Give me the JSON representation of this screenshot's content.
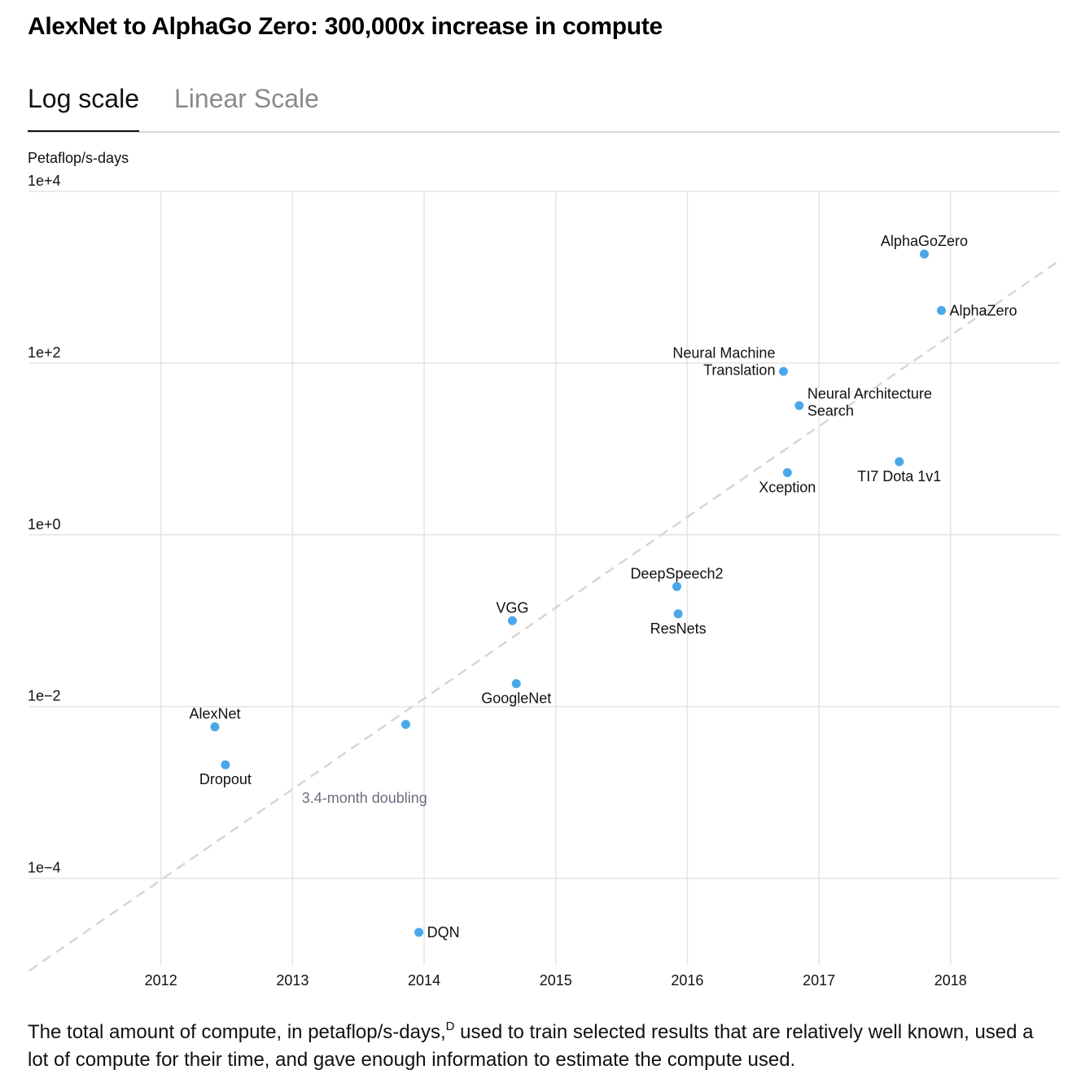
{
  "title": "AlexNet to AlphaGo Zero: 300,000x increase in compute",
  "tabs": [
    {
      "label": "Log scale",
      "active": true
    },
    {
      "label": "Linear Scale",
      "active": false
    }
  ],
  "caption": {
    "text_before": "The total amount of compute, in petaflop/s-days,",
    "footnote": "D",
    "text_after": " used to train selected results that are relatively well known, used a lot of compute for their time, and gave enough information to estimate the compute used."
  },
  "chart_data": {
    "type": "scatter",
    "ylabel": "Petaflop/s-days",
    "y_scale": "log",
    "ylim": [
      9.8e-06,
      10000
    ],
    "xlim": [
      2011.0,
      2018.83
    ],
    "y_ticks": [
      {
        "value": 10000,
        "label": "1e+4"
      },
      {
        "value": 100,
        "label": "1e+2"
      },
      {
        "value": 1,
        "label": "1e+0"
      },
      {
        "value": 0.01,
        "label": "1e−2"
      },
      {
        "value": 0.0001,
        "label": "1e−4"
      }
    ],
    "x_ticks": [
      {
        "value": 2012,
        "label": "2012"
      },
      {
        "value": 2013,
        "label": "2013"
      },
      {
        "value": 2014,
        "label": "2014"
      },
      {
        "value": 2015,
        "label": "2015"
      },
      {
        "value": 2016,
        "label": "2016"
      },
      {
        "value": 2017,
        "label": "2017"
      },
      {
        "value": 2018,
        "label": "2018"
      }
    ],
    "grid": true,
    "point_color": "#4aa8e8",
    "trend_color": "#d6d6d6",
    "trend": {
      "label": "3.4-month doubling",
      "from": {
        "x": 2011.0,
        "y": 8.4e-06
      },
      "to": {
        "x": 2018.83,
        "y": 1580
      }
    },
    "points": [
      {
        "name": "AlexNet",
        "x": 2012.41,
        "y": 0.0058,
        "label": [
          "AlexNet"
        ],
        "label_pos": "above"
      },
      {
        "name": "Dropout",
        "x": 2012.49,
        "y": 0.0021,
        "label": [
          "Dropout"
        ],
        "label_pos": "below"
      },
      {
        "name": "",
        "x": 2013.86,
        "y": 0.0062,
        "label": [],
        "label_pos": "none"
      },
      {
        "name": "DQN",
        "x": 2013.96,
        "y": 2.35e-05,
        "label": [
          "DQN"
        ],
        "label_pos": "right"
      },
      {
        "name": "VGG",
        "x": 2014.67,
        "y": 0.1,
        "label": [
          "VGG"
        ],
        "label_pos": "above"
      },
      {
        "name": "GoogleNet",
        "x": 2014.7,
        "y": 0.0185,
        "label": [
          "GoogleNet"
        ],
        "label_pos": "below"
      },
      {
        "name": "DeepSpeech2",
        "x": 2015.92,
        "y": 0.25,
        "label": [
          "DeepSpeech2"
        ],
        "label_pos": "above"
      },
      {
        "name": "ResNets",
        "x": 2015.93,
        "y": 0.12,
        "label": [
          "ResNets"
        ],
        "label_pos": "below"
      },
      {
        "name": "Neural Machine Translation",
        "x": 2016.73,
        "y": 80,
        "label": [
          "Neural Machine",
          "Translation"
        ],
        "label_pos": "left"
      },
      {
        "name": "Neural Architecture Search",
        "x": 2016.85,
        "y": 32,
        "label": [
          "Neural Architecture",
          "Search"
        ],
        "label_pos": "right"
      },
      {
        "name": "Xception",
        "x": 2016.76,
        "y": 5.3,
        "label": [
          "Xception"
        ],
        "label_pos": "below"
      },
      {
        "name": "TI7 Dota 1v1",
        "x": 2017.61,
        "y": 7.1,
        "label": [
          "TI7 Dota 1v1"
        ],
        "label_pos": "below"
      },
      {
        "name": "AlphaGoZero",
        "x": 2017.8,
        "y": 1860,
        "label": [
          "AlphaGoZero"
        ],
        "label_pos": "above"
      },
      {
        "name": "AlphaZero",
        "x": 2017.93,
        "y": 410,
        "label": [
          "AlphaZero"
        ],
        "label_pos": "right"
      }
    ]
  }
}
